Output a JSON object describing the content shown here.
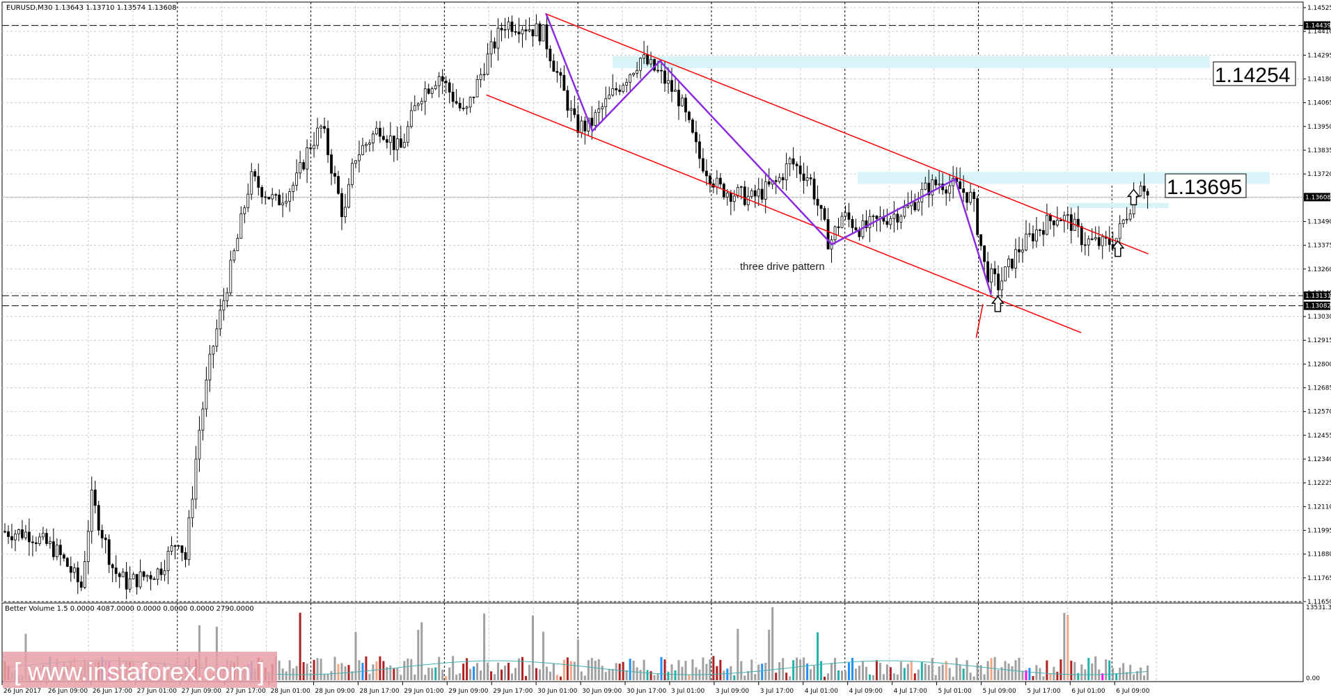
{
  "chart_data": {
    "type": "candlestick",
    "symbol_info": "EURUSD,M30  1.13643 1.13710 1.13574 1.13608",
    "current_price": "1.13608",
    "price_axis": {
      "range": [
        1.1165,
        1.14552
      ],
      "ticks": [
        "1.14525",
        "1.14410",
        "1.14295",
        "1.14180",
        "1.14065",
        "1.13950",
        "1.13835",
        "1.13720",
        "1.13605",
        "1.13490",
        "1.13375",
        "1.13260",
        "1.13145",
        "1.13030",
        "1.12915",
        "1.12800",
        "1.12685",
        "1.12570",
        "1.12455",
        "1.12340",
        "1.12225",
        "1.12110",
        "1.11995",
        "1.11880",
        "1.11765",
        "1.11650"
      ]
    },
    "time_axis": {
      "labels": [
        "26 Jun 2017",
        "26 Jun 09:00",
        "26 Jun 17:00",
        "27 Jun 01:00",
        "27 Jun 09:00",
        "27 Jun 17:00",
        "28 Jun 01:00",
        "28 Jun 09:00",
        "28 Jun 17:00",
        "29 Jun 01:00",
        "29 Jun 09:00",
        "29 Jun 17:00",
        "30 Jun 01:00",
        "30 Jun 09:00",
        "30 Jun 17:00",
        "3 Jul 01:00",
        "3 Jul 09:00",
        "3 Jul 17:00",
        "4 Jul 01:00",
        "4 Jul 09:00",
        "4 Jul 17:00",
        "5 Jul 01:00",
        "5 Jul 09:00",
        "5 Jul 17:00",
        "6 Jul 01:00",
        "6 Jul 09:00"
      ]
    },
    "grid": true,
    "horizontal_levels": [
      {
        "value": 1.14439,
        "label": "1.14439"
      },
      {
        "value": 1.13131,
        "label": "1.13131"
      },
      {
        "value": 1.13082,
        "label": "1.13082"
      }
    ],
    "resistance_zones": [
      {
        "value": 1.14254,
        "label": "1.14254"
      },
      {
        "value": 1.13695,
        "label": "1.13695"
      }
    ],
    "annotations": [
      "three drive pattern"
    ],
    "price_path": [
      [
        0,
        1.1199
      ],
      [
        0.02,
        1.1198
      ],
      [
        0.04,
        1.119
      ],
      [
        0.05,
        1.1182
      ],
      [
        0.06,
        1.1172
      ],
      [
        0.068,
        1.1215
      ],
      [
        0.085,
        1.118
      ],
      [
        0.095,
        1.1174
      ],
      [
        0.12,
        1.118
      ],
      [
        0.135,
        1.1196
      ],
      [
        0.14,
        1.1185
      ],
      [
        0.15,
        1.1245
      ],
      [
        0.16,
        1.1285
      ],
      [
        0.18,
        1.134
      ],
      [
        0.19,
        1.137
      ],
      [
        0.21,
        1.1358
      ],
      [
        0.225,
        1.1368
      ],
      [
        0.235,
        1.1385
      ],
      [
        0.245,
        1.1395
      ],
      [
        0.262,
        1.135
      ],
      [
        0.27,
        1.138
      ],
      [
        0.29,
        1.1395
      ],
      [
        0.305,
        1.1383
      ],
      [
        0.32,
        1.141
      ],
      [
        0.335,
        1.142
      ],
      [
        0.355,
        1.14
      ],
      [
        0.37,
        1.1425
      ],
      [
        0.385,
        1.1445
      ],
      [
        0.4,
        1.1444
      ],
      [
        0.415,
        1.144
      ],
      [
        0.44,
        1.1395
      ],
      [
        0.45,
        1.1395
      ],
      [
        0.47,
        1.1412
      ],
      [
        0.49,
        1.1428
      ],
      [
        0.505,
        1.142
      ],
      [
        0.52,
        1.1408
      ],
      [
        0.535,
        1.138
      ],
      [
        0.55,
        1.1365
      ],
      [
        0.575,
        1.136
      ],
      [
        0.595,
        1.1368
      ],
      [
        0.605,
        1.1378
      ],
      [
        0.62,
        1.137
      ],
      [
        0.635,
        1.1338
      ],
      [
        0.645,
        1.1352
      ],
      [
        0.66,
        1.1345
      ],
      [
        0.675,
        1.135
      ],
      [
        0.695,
        1.1355
      ],
      [
        0.71,
        1.1365
      ],
      [
        0.72,
        1.1368
      ],
      [
        0.735,
        1.1365
      ],
      [
        0.745,
        1.136
      ],
      [
        0.755,
        1.1325
      ],
      [
        0.765,
        1.1318
      ],
      [
        0.78,
        1.1335
      ],
      [
        0.795,
        1.1345
      ],
      [
        0.81,
        1.1352
      ],
      [
        0.82,
        1.1349
      ],
      [
        0.83,
        1.134
      ],
      [
        0.845,
        1.1338
      ],
      [
        0.855,
        1.134
      ],
      [
        0.865,
        1.1355
      ],
      [
        0.875,
        1.137
      ],
      [
        0.88,
        1.1361
      ]
    ],
    "overlay_lines": {
      "channel_upper": [
        [
          0.4175,
          1.14496
        ],
        [
          0.881,
          1.13333
        ]
      ],
      "channel_lower": [
        [
          0.3722,
          1.14103
        ],
        [
          0.8294,
          1.12952
        ]
      ],
      "three_drive": [
        [
          0.4181,
          1.14496
        ],
        [
          0.4537,
          1.13928
        ],
        [
          0.5056,
          1.14267
        ],
        [
          0.6378,
          1.13379
        ],
        [
          0.7326,
          1.13695
        ],
        [
          0.7602,
          1.13136
        ]
      ],
      "small_red_tick": [
        [
          0.7487,
          1.12927
        ],
        [
          0.7538,
          1.1309
        ]
      ]
    },
    "arrows": [
      {
        "x": 0.7653,
        "y": 1.13128,
        "direction": "up"
      },
      {
        "x": 0.8697,
        "y": 1.13645,
        "direction": "up"
      },
      {
        "x": 0.8576,
        "y": 1.13395,
        "direction": "up"
      }
    ],
    "volume_indicator": {
      "label": "Better Volume 1.5 0.0000 4087.0000 0.0000 0.0000 0.0000 2790.0000",
      "scale_max": "13531.35",
      "scale_min": "0.00",
      "colors": {
        "normal": "#a0a0a0",
        "climax_down": "#b02020",
        "climax_up": "#1e90ff",
        "churn": "#20b2aa",
        "low": "#f4a582",
        "climax_churn": "#ff00ff",
        "average_line": "#40b0b0"
      }
    }
  },
  "watermark": "[ www.instaforex.com ]",
  "colors": {
    "bull": "#ffffff",
    "bear": "#000000",
    "channel": "#ff0000",
    "pattern": "#8a2be2",
    "zone": "#d8f4f8"
  }
}
